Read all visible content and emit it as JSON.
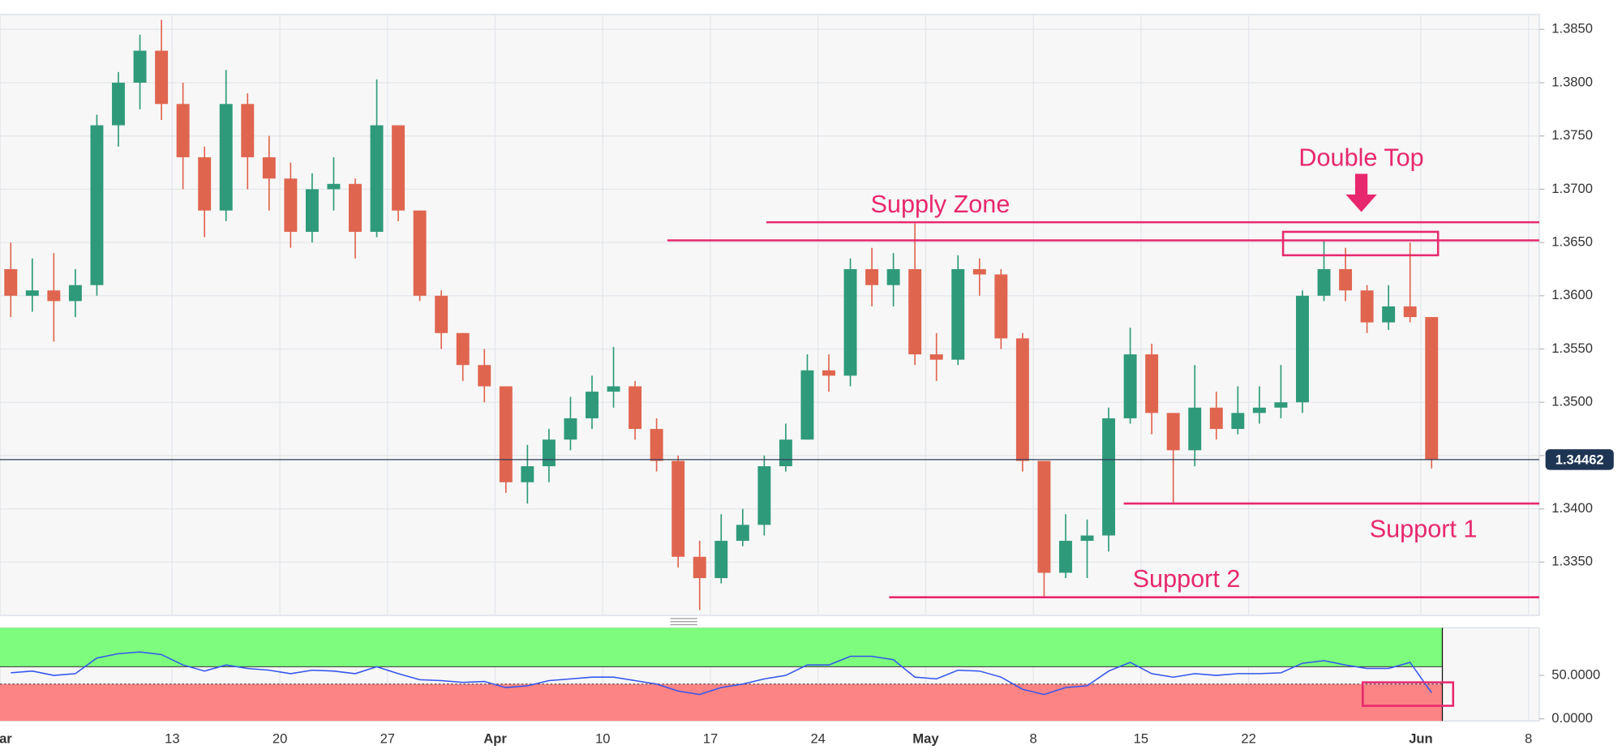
{
  "chart_data": [
    {
      "type": "candlestick",
      "open": [
        1.3625,
        1.36,
        1.3605,
        1.3595,
        1.361,
        1.376,
        1.38,
        1.383,
        1.378,
        1.373,
        1.368,
        1.378,
        1.373,
        1.371,
        1.366,
        1.37,
        1.3705,
        1.366,
        1.376,
        1.368,
        1.36,
        1.3565,
        1.3535,
        1.3515,
        1.3425,
        1.344,
        1.3465,
        1.3485,
        1.351,
        1.3515,
        1.3475,
        1.3445,
        1.3355,
        1.3335,
        1.337,
        1.3385,
        1.344,
        1.3465,
        1.353,
        1.3525,
        1.3625,
        1.361,
        1.3625,
        1.3545,
        1.354,
        1.3625,
        1.362,
        1.356,
        1.3445,
        1.334,
        1.337,
        1.3375,
        1.3485,
        1.3545,
        1.349,
        1.3455,
        1.3495,
        1.3475,
        1.349,
        1.3495,
        1.35,
        1.36,
        1.3625,
        1.3605,
        1.3575,
        1.359,
        1.358
      ],
      "high": [
        1.365,
        1.3635,
        1.364,
        1.3625,
        1.377,
        1.381,
        1.3845,
        1.3859,
        1.38,
        1.374,
        1.3812,
        1.379,
        1.375,
        1.3725,
        1.3715,
        1.373,
        1.371,
        1.3803,
        1.376,
        1.368,
        1.3605,
        1.3565,
        1.355,
        1.3515,
        1.346,
        1.3475,
        1.3505,
        1.3525,
        1.3552,
        1.352,
        1.3485,
        1.345,
        1.337,
        1.3395,
        1.34,
        1.345,
        1.348,
        1.3545,
        1.3545,
        1.3635,
        1.3645,
        1.364,
        1.3668,
        1.3565,
        1.3638,
        1.3635,
        1.3625,
        1.3565,
        1.3445,
        1.3395,
        1.339,
        1.3495,
        1.357,
        1.3555,
        1.349,
        1.3535,
        1.351,
        1.3515,
        1.3515,
        1.3535,
        1.3605,
        1.3652,
        1.3645,
        1.361,
        1.361,
        1.365,
        1.358
      ],
      "low": [
        1.358,
        1.3585,
        1.3557,
        1.358,
        1.36,
        1.374,
        1.3775,
        1.3765,
        1.37,
        1.3655,
        1.367,
        1.37,
        1.368,
        1.3645,
        1.365,
        1.368,
        1.3635,
        1.3655,
        1.367,
        1.3595,
        1.355,
        1.352,
        1.35,
        1.3415,
        1.3405,
        1.3425,
        1.3455,
        1.3475,
        1.3495,
        1.3465,
        1.3435,
        1.3345,
        1.3305,
        1.333,
        1.3365,
        1.3375,
        1.3435,
        1.3465,
        1.351,
        1.3515,
        1.359,
        1.359,
        1.3535,
        1.352,
        1.3535,
        1.36,
        1.355,
        1.3435,
        1.3318,
        1.3335,
        1.3335,
        1.336,
        1.348,
        1.347,
        1.3406,
        1.344,
        1.3465,
        1.347,
        1.348,
        1.3485,
        1.349,
        1.3595,
        1.3595,
        1.3565,
        1.3568,
        1.3575,
        1.3438
      ],
      "close": [
        1.36,
        1.3605,
        1.3595,
        1.361,
        1.376,
        1.38,
        1.383,
        1.378,
        1.373,
        1.368,
        1.378,
        1.373,
        1.371,
        1.366,
        1.37,
        1.3705,
        1.366,
        1.376,
        1.368,
        1.36,
        1.3565,
        1.3535,
        1.3515,
        1.3425,
        1.344,
        1.3465,
        1.3485,
        1.351,
        1.3515,
        1.3475,
        1.3445,
        1.3355,
        1.3335,
        1.337,
        1.3385,
        1.344,
        1.3465,
        1.353,
        1.3525,
        1.3625,
        1.361,
        1.3625,
        1.3545,
        1.354,
        1.3625,
        1.362,
        1.356,
        1.3445,
        1.334,
        1.337,
        1.3375,
        1.3485,
        1.3545,
        1.349,
        1.3455,
        1.3495,
        1.3475,
        1.349,
        1.3495,
        1.35,
        1.36,
        1.3625,
        1.3605,
        1.3575,
        1.359,
        1.358,
        1.34462
      ],
      "colors": {
        "up": "#2f9a7a",
        "down": "#e0654f"
      },
      "xlim": [
        0,
        71.5
      ],
      "ylim": [
        1.33,
        1.3864
      ],
      "yticks": [
        {
          "value": 1.335,
          "label": "1.3350"
        },
        {
          "value": 1.34,
          "label": "1.3400"
        },
        {
          "value": 1.345,
          "label": "1.3450"
        },
        {
          "value": 1.35,
          "label": "1.3500"
        },
        {
          "value": 1.355,
          "label": "1.3550"
        },
        {
          "value": 1.36,
          "label": "1.3600"
        },
        {
          "value": 1.365,
          "label": "1.3650"
        },
        {
          "value": 1.37,
          "label": "1.3700"
        },
        {
          "value": 1.375,
          "label": "1.3750"
        },
        {
          "value": 1.38,
          "label": "1.3800"
        },
        {
          "value": 1.385,
          "label": "1.3850"
        }
      ],
      "grid": true,
      "last_price": 1.34462,
      "annotation_color": "#e8286e",
      "levels": [
        {
          "value": 1.3669,
          "from": 35.6
        },
        {
          "value": 1.3652,
          "from": 31
        },
        {
          "value": 1.3405,
          "from": 52.2
        },
        {
          "value": 1.3317,
          "from": 41.3
        }
      ],
      "annotations": [
        "Supply Zone",
        "Double Top",
        "Support 1",
        "Support 2"
      ],
      "double_top_box": {
        "x": [
          59.6,
          66.8
        ],
        "y": [
          1.3638,
          1.366
        ]
      }
    },
    {
      "type": "line",
      "values": [
        53,
        55,
        50,
        52,
        70,
        75,
        77,
        74,
        62,
        55,
        62,
        58,
        56,
        52,
        56,
        55,
        52,
        60,
        52,
        45,
        44,
        42,
        43,
        36,
        38,
        44,
        46,
        48,
        48,
        44,
        40,
        32,
        28,
        36,
        40,
        46,
        50,
        62,
        62,
        72,
        72,
        68,
        48,
        46,
        56,
        55,
        48,
        34,
        28,
        36,
        38,
        55,
        65,
        52,
        48,
        52,
        50,
        52,
        52,
        53,
        64,
        67,
        62,
        58,
        58,
        65,
        30
      ],
      "color": "#3355ee",
      "xlim": [
        0,
        71.5
      ],
      "ylim": [
        -2.4,
        104.8
      ],
      "yticks": [
        {
          "value": 50,
          "label": "50.0000"
        },
        {
          "value": 0,
          "label": "0.0000"
        }
      ],
      "upper": 60,
      "lower": 40,
      "upper_color": "#7dfc7d",
      "lower_color": "#fd8484",
      "highlight_box": {
        "x": [
          63.3,
          67.5
        ],
        "y": [
          15,
          42
        ]
      },
      "xticks": [
        {
          "value": 0,
          "label": "Mar"
        },
        {
          "value": 8,
          "label": "13"
        },
        {
          "value": 13,
          "label": "20"
        },
        {
          "value": 18,
          "label": "27"
        },
        {
          "value": 23,
          "label": "Apr"
        },
        {
          "value": 28,
          "label": "10"
        },
        {
          "value": 33,
          "label": "17"
        },
        {
          "value": 38,
          "label": "24"
        },
        {
          "value": 43,
          "label": "May"
        },
        {
          "value": 48,
          "label": "8"
        },
        {
          "value": 53,
          "label": "15"
        },
        {
          "value": 58,
          "label": "22"
        },
        {
          "value": 66,
          "label": "Jun"
        },
        {
          "value": 71,
          "label": "8"
        }
      ]
    }
  ]
}
